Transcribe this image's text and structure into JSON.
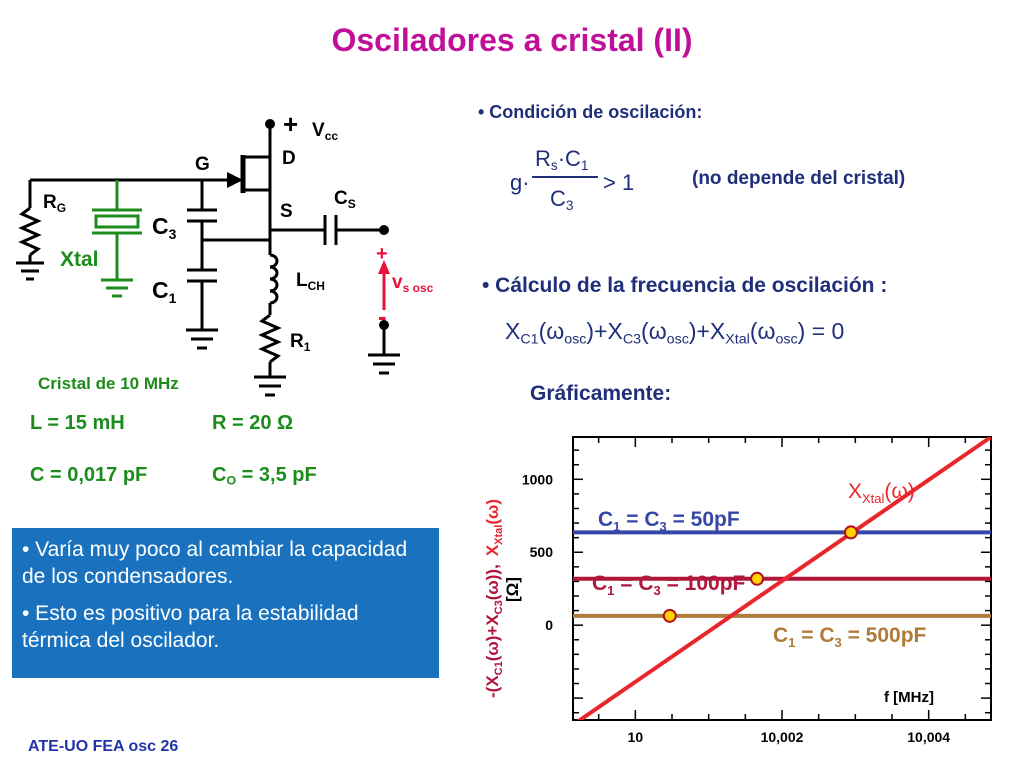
{
  "title": "Osciladores a cristal (II)",
  "circuit": {
    "vcc_sign": "+",
    "vcc_label": "V",
    "vcc_sub": "cc",
    "d_label": "D",
    "g_label": "G",
    "s_label": "S",
    "rg_label": "R",
    "rg_sub": "G",
    "cs_label": "C",
    "cs_sub": "S",
    "c3_label": "C",
    "c3_sub": "3",
    "c1_label": "C",
    "c1_sub": "1",
    "xtal_label": "Xtal",
    "lch_label": "L",
    "lch_sub": "CH",
    "r1_label": "R",
    "r1_sub": "1",
    "vout_plus": "+",
    "vout_minus": "-",
    "vout_label": "v",
    "vout_sub": "s osc",
    "crystal_caption": "Cristal de 10 MHz"
  },
  "crystal_params": {
    "l": "L = 15 mH",
    "r": "R = 20 Ω",
    "c": "C = 0,017 pF",
    "co_prefix": "C",
    "co_sub": "O",
    "co_suffix": " = 3,5 pF"
  },
  "note_box": {
    "item1": "• Varía muy poco al cambiar la capacidad de los condensadores.",
    "item2": "• Esto es positivo para la estabilidad térmica del oscilador."
  },
  "footer": "ATE-UO FEA osc 26",
  "condition": {
    "heading": "• Condición de oscilación:",
    "g": "g·",
    "num_rs": "R",
    "num_rs_sub": "s",
    "num_c1": "·C",
    "num_c1_sub": "1",
    "den_c3": "C",
    "den_c3_sub": "3",
    "gt": "> 1",
    "note": "(no depende del cristal)"
  },
  "frequency": {
    "heading": "• Cálculo de la frecuencia de oscilación :",
    "x1": "X",
    "x1_sub": "C1",
    "w1": "(ω",
    "w1_sub": "osc",
    "p1": ")+X",
    "x3_sub": "C3",
    "w3": "(ω",
    "w3_sub": "osc",
    "p3": ")+X",
    "xx_sub": "Xtal",
    "wx": "(ω",
    "wx_sub": "osc",
    "end": ") = 0"
  },
  "graph_heading": "Gráficamente:",
  "chart_data": {
    "type": "line",
    "title": "",
    "xlabel": "f   [MHz]",
    "ylabel_part1": "-(X",
    "ylabel_c1": "C1",
    "ylabel_part2": "(ω)+X",
    "ylabel_c3": "C3",
    "ylabel_part3": "(ω)),",
    "ylabel_xtal": "X",
    "ylabel_xtal_sub": "Xtal",
    "ylabel_xtal_w": "(ω)",
    "ylabel_units": "[Ω]",
    "xlim": [
      9.99915,
      10.00485
    ],
    "ylim": [
      -650,
      1290
    ],
    "xticks": [
      {
        "v": 10,
        "label": "10"
      },
      {
        "v": 10.002,
        "label": "10,002"
      },
      {
        "v": 10.004,
        "label": "10,004"
      }
    ],
    "yticks": [
      {
        "v": 0,
        "label": "0"
      },
      {
        "v": 500,
        "label": "500"
      },
      {
        "v": 1000,
        "label": "1000"
      }
    ],
    "xtal_curve": {
      "label": "X",
      "label_sub": "Xtal",
      "label_w": "(ω)",
      "color": "#e8262c",
      "x": [
        9.99915,
        10.00485
      ],
      "y": [
        -683,
        1290
      ]
    },
    "series": [
      {
        "label": "C",
        "sub1": "1",
        "mid": " = C",
        "sub3": "3",
        "tail": " = 50pF",
        "value": 636,
        "color": "#3747a8",
        "intersection_x": 10.00294
      },
      {
        "label": "C",
        "sub1": "1",
        "mid": " = C",
        "sub3": "3",
        "tail": " = 100pF",
        "value": 318,
        "color": "#b0173a",
        "intersection_x": 10.00166
      },
      {
        "label": "C",
        "sub1": "1",
        "mid": " = C",
        "sub3": "3",
        "tail": " = 500pF",
        "value": 64,
        "color": "#b07a3a",
        "intersection_x": 10.00047
      }
    ]
  }
}
